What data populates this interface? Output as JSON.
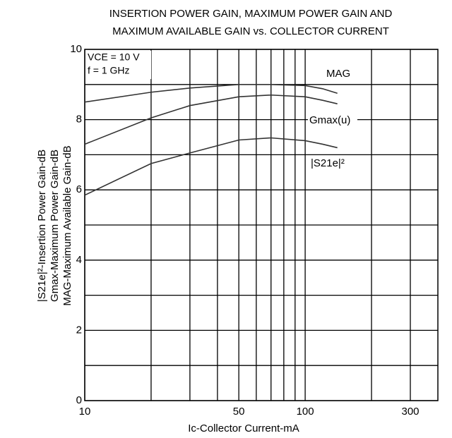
{
  "chart_data": {
    "type": "line",
    "title": [
      "INSERTION POWER GAIN, MAXIMUM POWER GAIN AND",
      "MAXIMUM AVAILABLE GAIN vs. COLLECTOR CURRENT"
    ],
    "xlabel": "Ic-Collector Current-mA",
    "ylabel": [
      "|S21e|²-Insertion Power Gain-dB",
      "Gmax-Maximum Power Gain-dB",
      "MAG-Maximum Available Gain-dB"
    ],
    "annotations": [
      "VCE = 10 V",
      "f = 1 GHz"
    ],
    "xscale": "log",
    "xlim": [
      10,
      400
    ],
    "xticks": [
      10,
      50,
      100,
      300
    ],
    "xgrid": [
      20,
      30,
      40,
      60,
      70,
      80,
      90,
      200
    ],
    "ylim": [
      0,
      10
    ],
    "yticks": [
      0,
      2,
      4,
      6,
      8,
      10
    ],
    "ygrid": [
      1,
      3,
      5,
      7,
      9
    ],
    "grid": true,
    "x": [
      10,
      20,
      30,
      50,
      70,
      100,
      120,
      140
    ],
    "series": [
      {
        "name": "MAG",
        "color": "#333333",
        "values": [
          8.5,
          8.78,
          8.9,
          9.0,
          9.0,
          8.97,
          8.88,
          8.75
        ]
      },
      {
        "name": "Gmax(u)",
        "color": "#333333",
        "values": [
          7.3,
          8.05,
          8.4,
          8.65,
          8.7,
          8.65,
          8.55,
          8.45
        ]
      },
      {
        "name": "|S21e|²",
        "color": "#333333",
        "values": [
          5.85,
          6.75,
          7.05,
          7.42,
          7.48,
          7.4,
          7.3,
          7.2
        ]
      }
    ]
  }
}
